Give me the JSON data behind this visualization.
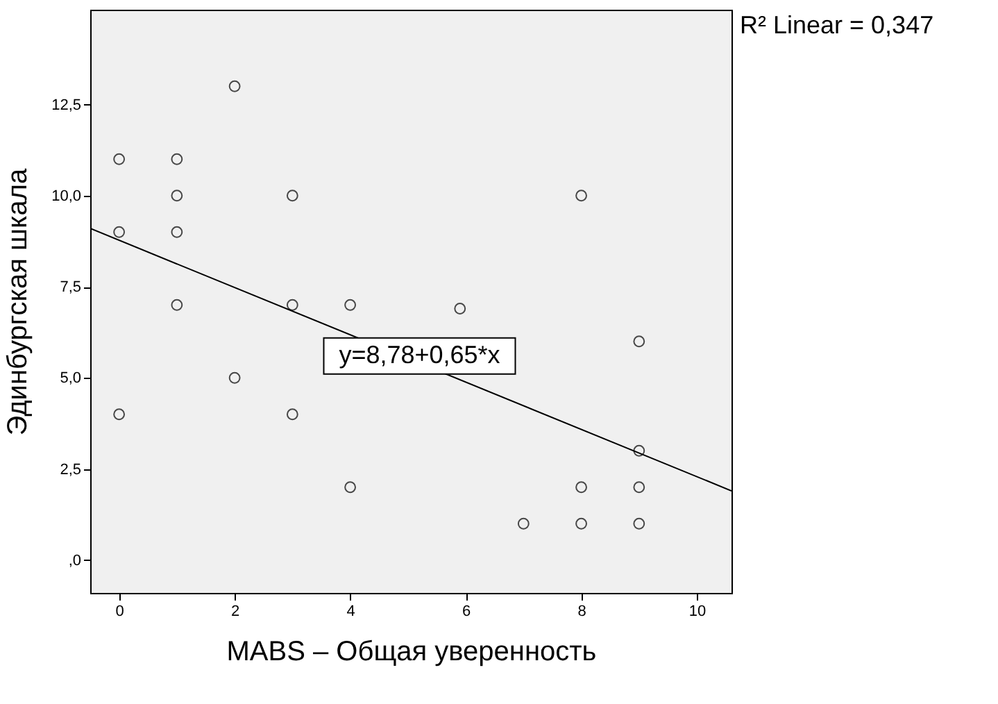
{
  "chart_data": {
    "type": "scatter",
    "xlabel": "MABS – Общая уверенность",
    "ylabel": "Эдинбургская шкала",
    "xlim": [
      -0.5,
      10.6
    ],
    "ylim": [
      -0.9,
      15.1
    ],
    "xticks": [
      0,
      2,
      4,
      6,
      8,
      10
    ],
    "yticks": [
      {
        "value": 0,
        "label": ",0"
      },
      {
        "value": 2.5,
        "label": "2,5"
      },
      {
        "value": 5,
        "label": "5,0"
      },
      {
        "value": 7.5,
        "label": "7,5"
      },
      {
        "value": 10,
        "label": "10,0"
      },
      {
        "value": 12.5,
        "label": "12,5"
      }
    ],
    "grid": false,
    "series": [
      {
        "color": "#000000",
        "marker": "circle",
        "x": [
          0,
          0,
          0,
          1,
          1,
          1,
          1,
          2,
          2,
          3,
          3,
          3,
          4,
          4,
          5.9,
          7,
          8,
          8,
          8,
          9,
          9,
          9,
          9
        ],
        "values": [
          11,
          9,
          4,
          11,
          10,
          9,
          7,
          13,
          5,
          10,
          7,
          4,
          7,
          2,
          6.9,
          1,
          10,
          2,
          1,
          6,
          3,
          2,
          1
        ]
      },
      {
        "type": "line",
        "color": "#000000",
        "x": [
          -0.5,
          10.6
        ],
        "values": [
          9.1,
          1.9
        ]
      }
    ],
    "annotations": [
      {
        "text": "y=8,78+0,65*x",
        "x": 5.2,
        "y": 5.6
      },
      "R² Linear = 0,347"
    ]
  }
}
